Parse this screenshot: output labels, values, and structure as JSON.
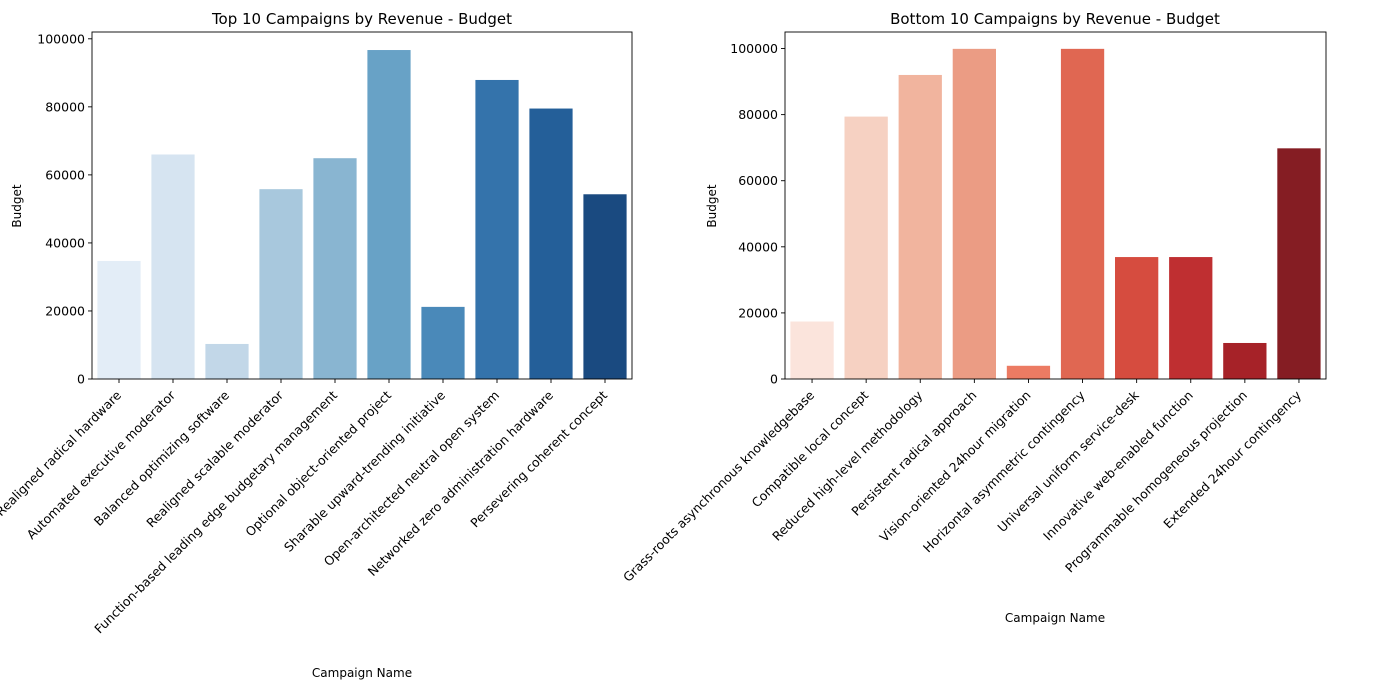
{
  "chart_data": [
    {
      "type": "bar",
      "title": "Top 10 Campaigns by Revenue - Budget",
      "xlabel": "Campaign Name",
      "ylabel": "Budget",
      "ylim": [
        0,
        102000
      ],
      "yticks": [
        0,
        20000,
        40000,
        60000,
        80000,
        100000
      ],
      "grid": false,
      "palette": "Blues",
      "categories": [
        "Realigned radical hardware",
        "Automated executive moderator",
        "Balanced optimizing software",
        "Realigned scalable moderator",
        "Function-based leading edge budgetary management",
        "Optional object-oriented project",
        "Sharable upward-trending initiative",
        "Open-architected neutral open system",
        "Networked zero administration hardware",
        "Persevering coherent concept"
      ],
      "values": [
        34700,
        66000,
        10300,
        55800,
        64900,
        96700,
        21200,
        87900,
        79500,
        54300
      ],
      "colors": [
        "#e3edf7",
        "#d6e4f1",
        "#c2d7e8",
        "#a8c8dd",
        "#89b5d1",
        "#68a2c6",
        "#4a89b9",
        "#3473ab",
        "#245f99",
        "#1a4a80"
      ]
    },
    {
      "type": "bar",
      "title": "Bottom 10 Campaigns by Revenue - Budget",
      "xlabel": "Campaign Name",
      "ylabel": "Budget",
      "ylim": [
        0,
        105000
      ],
      "yticks": [
        0,
        20000,
        40000,
        60000,
        80000,
        100000
      ],
      "grid": false,
      "palette": "Reds",
      "categories": [
        "Grass-roots asynchronous knowledgebase",
        "Compatible local concept",
        "Reduced high-level methodology",
        "Persistent radical approach",
        "Vision-oriented 24hour migration",
        "Horizontal asymmetric contingency",
        "Universal uniform service-desk",
        "Innovative web-enabled function",
        "Programmable homogeneous projection",
        "Extended 24hour contingency"
      ],
      "values": [
        17400,
        79400,
        92000,
        99900,
        4000,
        99900,
        36900,
        36900,
        10900,
        69800
      ],
      "colors": [
        "#fbe4dc",
        "#f6d1c2",
        "#f1b49e",
        "#eb9c84",
        "#ec7b63",
        "#e06752",
        "#d64c3f",
        "#bf2f31",
        "#a62228",
        "#851d23"
      ]
    }
  ]
}
